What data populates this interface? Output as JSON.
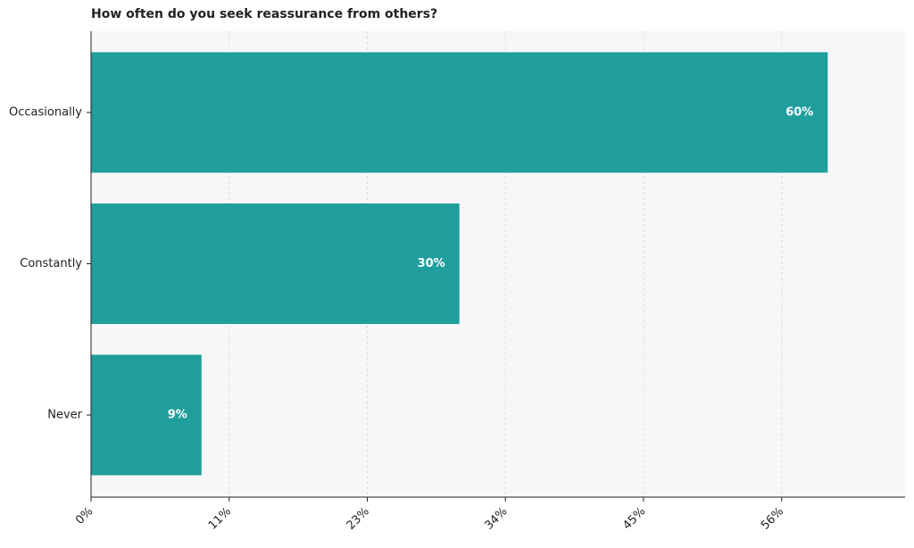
{
  "chart_data": {
    "type": "barh",
    "title": "How often do you seek reassurance from others?",
    "categories": [
      "Occasionally",
      "Constantly",
      "Never"
    ],
    "values": [
      60,
      30,
      9
    ],
    "value_labels": [
      "60%",
      "30%",
      "9%"
    ],
    "color": "#1f9e9c",
    "xlim": [
      0,
      66.3
    ],
    "xticks": [
      {
        "value": 0,
        "label": "0%"
      },
      {
        "value": 11.25,
        "label": "11%"
      },
      {
        "value": 22.5,
        "label": "23%"
      },
      {
        "value": 33.75,
        "label": "34%"
      },
      {
        "value": 45,
        "label": "45%"
      },
      {
        "value": 56.25,
        "label": "56%"
      }
    ],
    "grid": true
  }
}
